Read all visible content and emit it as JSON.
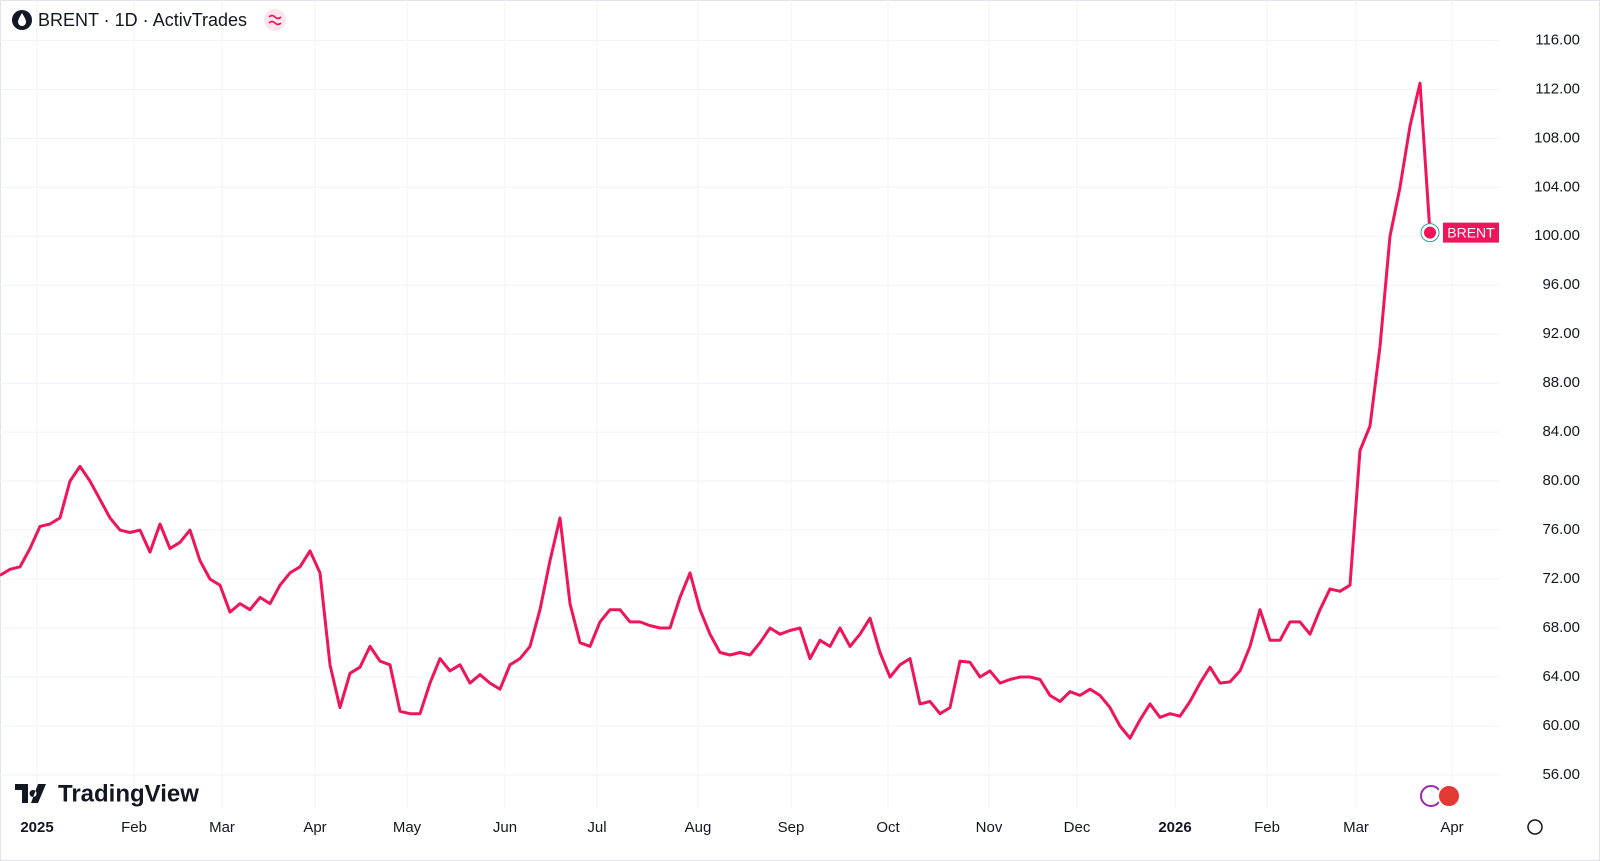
{
  "chart_data": {
    "type": "line",
    "title": "BRENT · 1D · ActivTrades",
    "logo": "TradingView",
    "series": [
      {
        "name": "BRENT",
        "color": "#f0145a",
        "values": [
          72.3,
          72.8,
          73.0,
          74.5,
          76.3,
          76.5,
          77.0,
          80.0,
          81.2,
          80.0,
          78.5,
          77.0,
          76.0,
          75.8,
          76.0,
          74.2,
          76.5,
          74.5,
          75.0,
          76.0,
          73.5,
          72.0,
          71.5,
          69.3,
          70.0,
          69.5,
          70.5,
          70.0,
          71.5,
          72.5,
          73.0,
          74.3,
          72.5,
          65.0,
          61.5,
          64.3,
          64.8,
          66.5,
          65.3,
          65.0,
          61.2,
          61.0,
          61.0,
          63.5,
          65.5,
          64.5,
          65.0,
          63.5,
          64.2,
          63.5,
          63.0,
          65.0,
          65.5,
          66.5,
          69.5,
          73.5,
          77.0,
          70.0,
          66.8,
          66.5,
          68.5,
          69.5,
          69.5,
          68.5,
          68.5,
          68.2,
          68.0,
          68.0,
          70.5,
          72.5,
          69.5,
          67.5,
          66.0,
          65.8,
          66.0,
          65.8,
          66.8,
          68.0,
          67.5,
          67.8,
          68.0,
          65.5,
          67.0,
          66.5,
          68.0,
          66.5,
          67.5,
          68.8,
          66.0,
          64.0,
          65.0,
          65.5,
          61.8,
          62.0,
          61.0,
          61.5,
          65.3,
          65.2,
          64.0,
          64.5,
          63.5,
          63.8,
          64.0,
          64.0,
          63.8,
          62.5,
          62.0,
          62.8,
          62.5,
          63.0,
          62.5,
          61.5,
          60.0,
          59.0,
          60.5,
          61.8,
          60.7,
          61.0,
          60.8,
          62.0,
          63.5,
          64.8,
          63.5,
          63.6,
          64.5,
          66.5,
          69.5,
          67.0,
          67.0,
          68.5,
          68.5,
          67.5,
          69.5,
          71.2,
          71.0,
          71.5,
          82.5,
          84.5,
          91.0,
          100.0,
          104.0,
          109.0,
          112.5,
          100.3
        ]
      }
    ],
    "xlim": [
      0,
      150
    ],
    "xticks": [
      {
        "value": 3.7,
        "label": "2025",
        "bold": true
      },
      {
        "value": 13.4,
        "label": "Feb"
      },
      {
        "value": 22.2,
        "label": "Mar"
      },
      {
        "value": 31.5,
        "label": "Apr"
      },
      {
        "value": 40.7,
        "label": "May"
      },
      {
        "value": 50.5,
        "label": "Jun"
      },
      {
        "value": 59.7,
        "label": "Jul"
      },
      {
        "value": 69.8,
        "label": "Aug"
      },
      {
        "value": 79.1,
        "label": "Sep"
      },
      {
        "value": 88.8,
        "label": "Oct"
      },
      {
        "value": 98.9,
        "label": "Nov"
      },
      {
        "value": 107.7,
        "label": "Dec"
      },
      {
        "value": 117.5,
        "label": "2026",
        "bold": true
      },
      {
        "value": 126.7,
        "label": "Feb"
      },
      {
        "value": 135.6,
        "label": "Mar"
      },
      {
        "value": 145.2,
        "label": "Apr"
      }
    ],
    "ylim": [
      53.3,
      119.3
    ],
    "yticks": [
      {
        "value": 56,
        "label": "56.00"
      },
      {
        "value": 60,
        "label": "60.00"
      },
      {
        "value": 64,
        "label": "64.00"
      },
      {
        "value": 68,
        "label": "68.00"
      },
      {
        "value": 72,
        "label": "72.00"
      },
      {
        "value": 76,
        "label": "76.00"
      },
      {
        "value": 80,
        "label": "80.00"
      },
      {
        "value": 84,
        "label": "84.00"
      },
      {
        "value": 88,
        "label": "88.00"
      },
      {
        "value": 92,
        "label": "92.00"
      },
      {
        "value": 96,
        "label": "96.00"
      },
      {
        "value": 100,
        "label": "100.00"
      },
      {
        "value": 104,
        "label": "104.00"
      },
      {
        "value": 108,
        "label": "108.00"
      },
      {
        "value": 112,
        "label": "112.00"
      },
      {
        "value": 116,
        "label": "116.00"
      }
    ],
    "grid": true
  }
}
